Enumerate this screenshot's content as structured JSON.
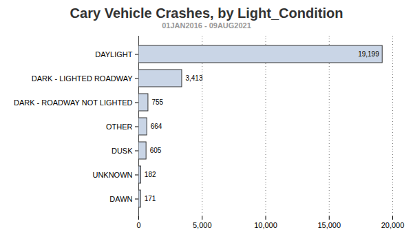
{
  "chart_data": {
    "type": "bar",
    "orientation": "horizontal",
    "title": "Cary Vehicle Crashes, by Light_Condition",
    "subtitle": "01JAN2016 - 09AUG2021",
    "categories": [
      "DAYLIGHT",
      "DARK - LIGHTED ROADWAY",
      "DARK - ROADWAY NOT LIGHTED",
      "OTHER",
      "DUSK",
      "UNKNOWN",
      "DAWN"
    ],
    "values": [
      19199,
      3413,
      755,
      664,
      605,
      182,
      171
    ],
    "value_labels": [
      "19,199",
      "3,413",
      "755",
      "664",
      "605",
      "182",
      "171"
    ],
    "color": "#c9d5e6",
    "xlim": [
      0,
      20000
    ],
    "xticks": [
      0,
      {
        "value": 5000,
        "label": "5,000"
      },
      {
        "value": 10000,
        "label": "10,000"
      },
      {
        "value": 15000,
        "label": "15,000"
      },
      {
        "value": 20000,
        "label": "20,000"
      }
    ],
    "grid": true,
    "data_labels": true
  }
}
